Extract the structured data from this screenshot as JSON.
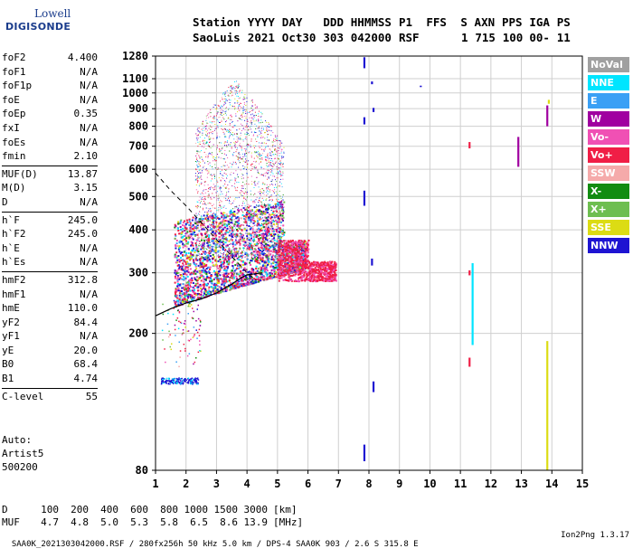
{
  "logo": {
    "line1": "Lowell",
    "line2": "DIGISONDE"
  },
  "header": {
    "row1": [
      "Station",
      "YYYY",
      "DAY",
      "DDD",
      "HHMMSS",
      "P1",
      "FFS",
      "S",
      "AXN",
      "PPS",
      "IGA",
      "PS"
    ],
    "row2": [
      "SaoLuis",
      "2021",
      "Oct30",
      "303",
      "042000",
      "RSF",
      "",
      "1",
      "715",
      "100",
      "00-",
      "11"
    ]
  },
  "params": [
    {
      "group": [
        {
          "name": "foF2",
          "value": "4.400"
        },
        {
          "name": "foF1",
          "value": "N/A"
        },
        {
          "name": "foF1p",
          "value": "N/A"
        },
        {
          "name": "foE",
          "value": "N/A"
        },
        {
          "name": "foEp",
          "value": "0.35"
        },
        {
          "name": "fxI",
          "value": "N/A"
        },
        {
          "name": "foEs",
          "value": "N/A"
        },
        {
          "name": "fmin",
          "value": "2.10"
        }
      ]
    },
    {
      "group": [
        {
          "name": "MUF(D)",
          "value": "13.87"
        },
        {
          "name": "M(D)",
          "value": "3.15"
        },
        {
          "name": "D",
          "value": "N/A"
        }
      ]
    },
    {
      "group": [
        {
          "name": "h`F",
          "value": "245.0"
        },
        {
          "name": "h`F2",
          "value": "245.0"
        },
        {
          "name": "h`E",
          "value": "N/A"
        },
        {
          "name": "h`Es",
          "value": "N/A"
        }
      ]
    },
    {
      "group": [
        {
          "name": "hmF2",
          "value": "312.8"
        },
        {
          "name": "hmF1",
          "value": "N/A"
        },
        {
          "name": "hmE",
          "value": "110.0"
        },
        {
          "name": "yF2",
          "value": "84.4"
        },
        {
          "name": "yF1",
          "value": "N/A"
        },
        {
          "name": "yE",
          "value": "20.0"
        },
        {
          "name": "B0",
          "value": "68.4"
        },
        {
          "name": "B1",
          "value": "4.74"
        }
      ]
    },
    {
      "group": [
        {
          "name": "C-level",
          "value": "55"
        }
      ]
    }
  ],
  "auto": {
    "line1": "Auto:",
    "line2": "Artist5",
    "line3": "500200"
  },
  "legend": [
    {
      "label": "NoVal",
      "color": "#a0a0a0"
    },
    {
      "label": "NNE",
      "color": "#00e5ff"
    },
    {
      "label": "E",
      "color": "#3aa0f5"
    },
    {
      "label": "W",
      "color": "#a000a0"
    },
    {
      "label": "Vo-",
      "color": "#f050b4"
    },
    {
      "label": "Vo+",
      "color": "#f01e46"
    },
    {
      "label": "SSW",
      "color": "#f5aaaa"
    },
    {
      "label": "X-",
      "color": "#128c12"
    },
    {
      "label": "X+",
      "color": "#6ebe50"
    },
    {
      "label": "SSE",
      "color": "#dcdc14"
    },
    {
      "label": "NNW",
      "color": "#1e14d2"
    }
  ],
  "dtable": {
    "row1_label": "D",
    "row1_values": [
      "100",
      "200",
      "400",
      "600",
      "800",
      "1000",
      "1500",
      "3000"
    ],
    "row1_unit": "[km]",
    "row2_label": "MUF",
    "row2_values": [
      "4.7",
      "4.8",
      "5.0",
      "5.3",
      "5.8",
      "6.5",
      "8.6",
      "13.9"
    ],
    "row2_unit": "[MHz]"
  },
  "footer": {
    "text": "SAA0K_2021303042000.RSF / 280fx256h 50 kHz 5.0 km / DPS-4 SAA0K 903 / 2.6 S 315.8 E",
    "version": "Ion2Png 1.3.17"
  },
  "chart_data": {
    "type": "scatter",
    "xlim": [
      1,
      15
    ],
    "ylim": [
      80,
      1280
    ],
    "y_scale": "log",
    "xticks": [
      1,
      2,
      3,
      4,
      5,
      6,
      7,
      8,
      9,
      10,
      11,
      12,
      13,
      14,
      15
    ],
    "yticks": [
      80,
      200,
      300,
      400,
      500,
      600,
      700,
      800,
      900,
      1000,
      1100,
      1280
    ],
    "grid": true,
    "xlabel": "",
    "ylabel": "",
    "series": [
      {
        "color": "#1e14d2",
        "segments": [
          {
            "x": 7.85,
            "y": [
              1180,
              1270
            ]
          },
          {
            "x": 8.1,
            "y": [
              1060,
              1080
            ]
          },
          {
            "x": 8.15,
            "y": [
              880,
              905
            ]
          },
          {
            "x": 7.85,
            "y": [
              810,
              850
            ]
          },
          {
            "x": 7.85,
            "y": [
              470,
              520
            ]
          },
          {
            "x": 8.1,
            "y": [
              315,
              330
            ]
          },
          {
            "x": 8.15,
            "y": [
              135,
              145
            ]
          },
          {
            "x": 7.85,
            "y": [
              85,
              95
            ]
          },
          {
            "x": 9.7,
            "y": [
              1040,
              1050
            ]
          }
        ]
      },
      {
        "color": "#a000a0",
        "segments": [
          {
            "x": 12.9,
            "y": [
              610,
              745
            ]
          },
          {
            "x": 13.85,
            "y": [
              800,
              920
            ]
          }
        ]
      },
      {
        "color": "#f01e46",
        "segments": [
          {
            "x": 11.3,
            "y": [
              295,
              305
            ]
          },
          {
            "x": 11.3,
            "y": [
              160,
              170
            ]
          },
          {
            "x": 11.3,
            "y": [
              690,
              720
            ]
          }
        ]
      },
      {
        "color": "#00e5ff",
        "segments": [
          {
            "x": 11.4,
            "y": [
              185,
              320
            ]
          }
        ]
      },
      {
        "color": "#dcdc14",
        "segments": [
          {
            "x": 13.85,
            "y": [
              80,
              190
            ]
          },
          {
            "x": 13.9,
            "y": [
              930,
              955
            ]
          }
        ]
      }
    ],
    "fit_curve_dashed": [
      [
        1.0,
        585
      ],
      [
        1.5,
        520
      ],
      [
        2.0,
        470
      ],
      [
        2.5,
        420
      ],
      [
        3.0,
        375
      ],
      [
        3.5,
        335
      ],
      [
        4.0,
        300
      ],
      [
        4.3,
        285
      ]
    ],
    "fit_curve_solid": [
      [
        1.0,
        225
      ],
      [
        1.5,
        236
      ],
      [
        2.0,
        245
      ],
      [
        2.5,
        252
      ],
      [
        3.0,
        262
      ],
      [
        3.5,
        278
      ],
      [
        3.8,
        290
      ],
      [
        4.0,
        296
      ],
      [
        4.5,
        300
      ]
    ]
  }
}
